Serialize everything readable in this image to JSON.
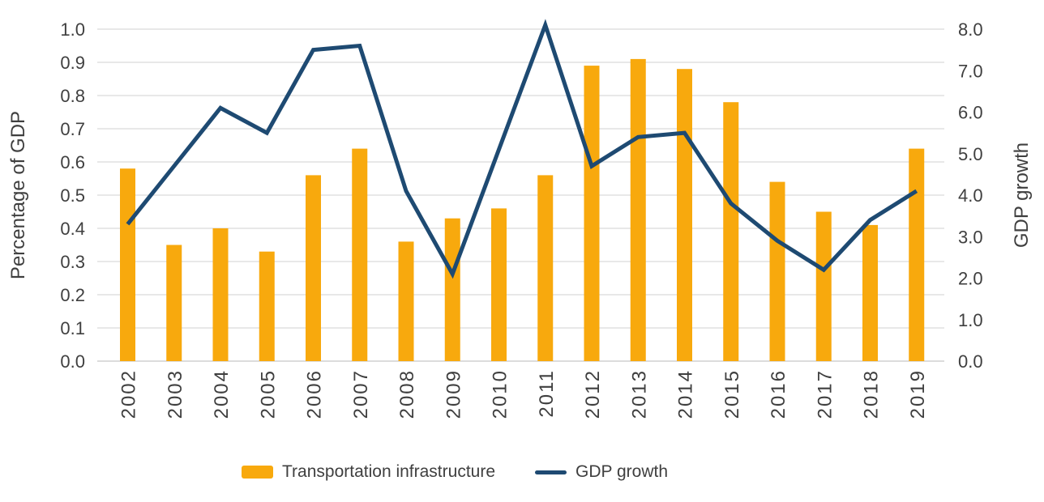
{
  "chart_data": {
    "type": "bar",
    "subtype": "combo-bar-line-dual-axis",
    "categories": [
      "2002",
      "2003",
      "2004",
      "2005",
      "2006",
      "2007",
      "2008",
      "2009",
      "2010",
      "2011",
      "2012",
      "2013",
      "2014",
      "2015",
      "2016",
      "2017",
      "2018",
      "2019"
    ],
    "series": [
      {
        "name": "Transportation infrastructure",
        "type": "bar",
        "axis": "left",
        "values": [
          0.58,
          0.35,
          0.4,
          0.33,
          0.56,
          0.64,
          0.36,
          0.43,
          0.46,
          0.56,
          0.89,
          0.91,
          0.88,
          0.78,
          0.54,
          0.45,
          0.41,
          0.64
        ]
      },
      {
        "name": "GDP growth",
        "type": "line",
        "axis": "right",
        "values": [
          3.3,
          4.7,
          6.1,
          5.5,
          7.5,
          7.6,
          4.1,
          2.1,
          5.1,
          8.1,
          4.7,
          5.4,
          5.5,
          3.8,
          2.9,
          2.2,
          3.4,
          4.1
        ]
      }
    ],
    "left_axis": {
      "title": "Percentage of GDP",
      "min": 0.0,
      "max": 1.0,
      "step": 0.1,
      "ticks": [
        "1.0",
        "0.9",
        "0.8",
        "0.7",
        "0.6",
        "0.5",
        "0.4",
        "0.3",
        "0.2",
        "0.1",
        "0.0"
      ]
    },
    "right_axis": {
      "title": "GDP growth",
      "min": 0.0,
      "max": 8.0,
      "step": 1.0,
      "ticks": [
        "8.0",
        "7.0",
        "6.0",
        "5.0",
        "4.0",
        "3.0",
        "2.0",
        "1.0",
        "0.0"
      ]
    },
    "grid": true,
    "legend_position": "bottom"
  },
  "colors": {
    "bar": "#F8A90D",
    "line": "#1E4A72",
    "gridline": "#D9D9D9",
    "baseline": "#C6C6C6",
    "text": "#3F3F3F",
    "background": "#FFFFFF"
  }
}
